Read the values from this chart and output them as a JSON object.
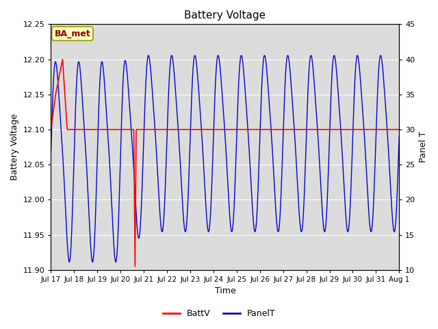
{
  "title": "Battery Voltage",
  "xlabel": "Time",
  "ylabel_left": "Battery Voltage",
  "ylabel_right": "Panel T",
  "annotation": "BA_met",
  "ylim_left": [
    11.9,
    12.25
  ],
  "ylim_right": [
    10,
    45
  ],
  "background_color": "#ffffff",
  "plot_bg_color": "#dcdcdc",
  "batt_v_color": "#ff0000",
  "panel_t_color": "#0000cc",
  "batt_v_value": 12.1,
  "legend_batt_label": "BattV",
  "legend_panel_label": "PanelT",
  "tick_labels": [
    "Jul 17",
    "Jul 18",
    "Jul 19",
    "Jul 20",
    "Jul 21",
    "Jul 22",
    "Jul 23",
    "Jul 24",
    "Jul 25",
    "Jul 26",
    "Jul 27",
    "Jul 28",
    "Jul 29",
    "Jul 30",
    "Jul 31",
    "Aug 1"
  ],
  "yticks_left": [
    11.9,
    11.95,
    12.0,
    12.05,
    12.1,
    12.15,
    12.2,
    12.25
  ],
  "yticks_right": [
    10,
    15,
    20,
    25,
    30,
    35,
    40,
    45
  ]
}
